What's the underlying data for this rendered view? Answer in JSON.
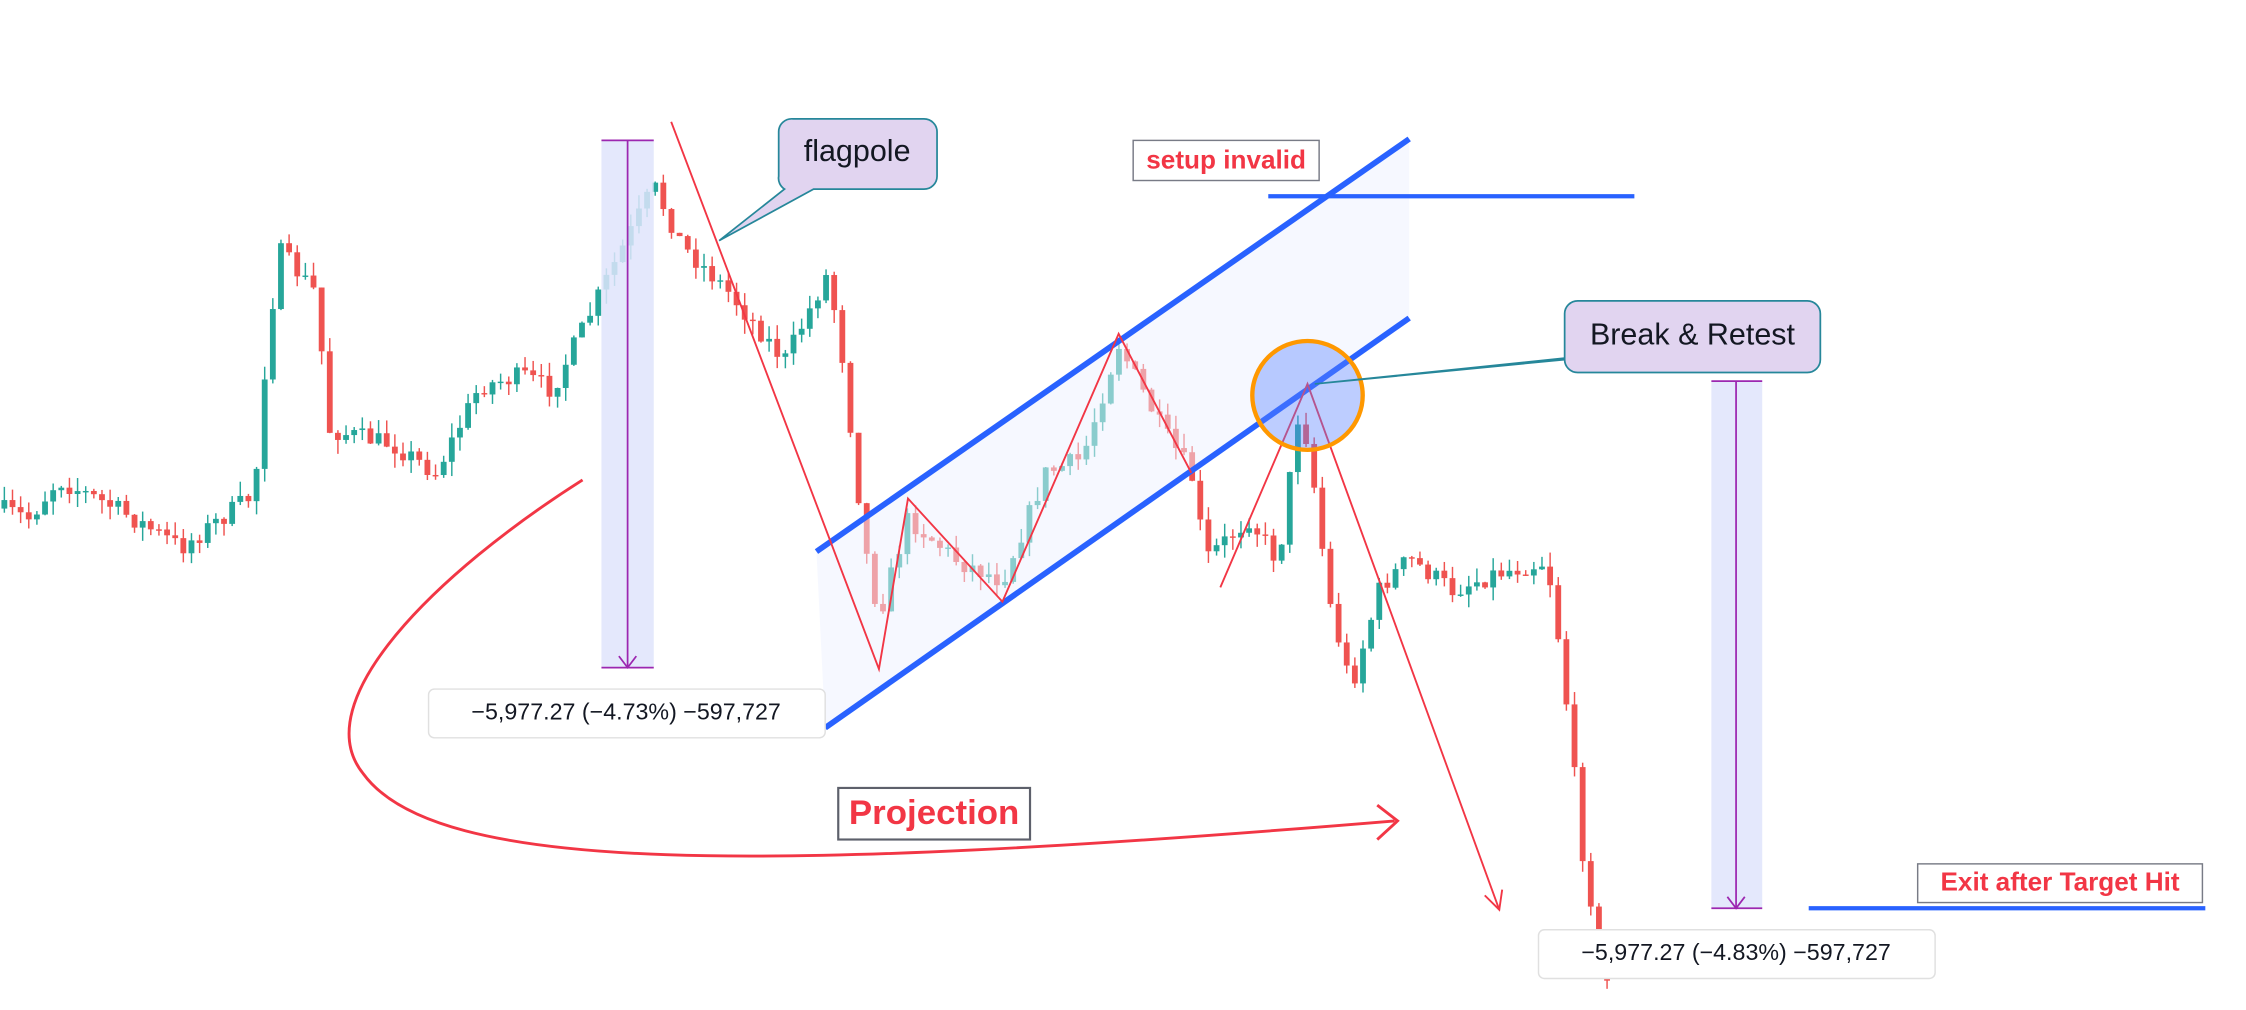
{
  "annotations": {
    "flagpole": "flagpole",
    "setup_invalid": "setup invalid",
    "break_retest": "Break & Retest",
    "projection": "Projection",
    "exit": "Exit after Target Hit",
    "measure_1": "−5,977.27 (−4.73%) −597,727",
    "measure_2": "−5,977.27 (−4.83%) −597,727"
  }
}
